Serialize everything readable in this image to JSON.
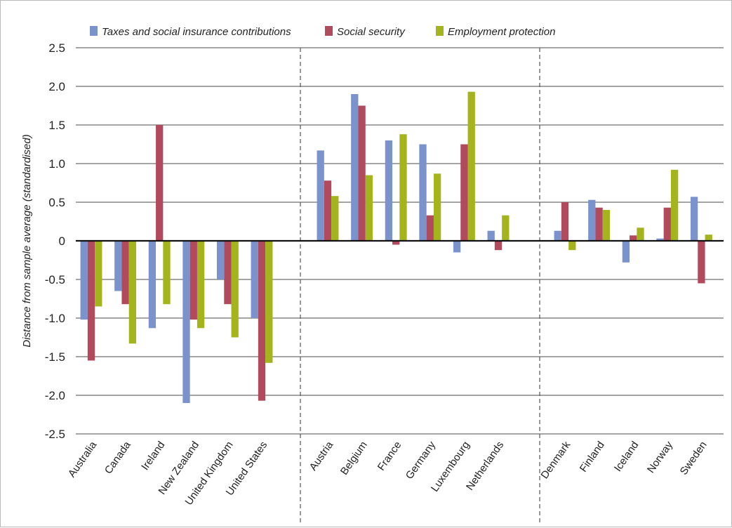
{
  "chart_data": {
    "type": "bar",
    "title": "",
    "xlabel": "",
    "ylabel": "Distance from sample average (standardised)",
    "ylim": [
      -2.5,
      2.5
    ],
    "yticks": [
      "2.5",
      "2.0",
      "1.5",
      "1.0",
      "0.5",
      "0",
      "-0.5",
      "-1.0",
      "-1.5",
      "-2.0",
      "-2.5"
    ],
    "ytick_values": [
      2.5,
      2.0,
      1.5,
      1.0,
      0.5,
      0,
      -0.5,
      -1.0,
      -1.5,
      -2.0,
      -2.5
    ],
    "grid": true,
    "legend_position": "top",
    "categories": [
      "Australia",
      "Canada",
      "Ireland",
      "New Zealand",
      "United Kingdom",
      "United States",
      "Austria",
      "Belgium",
      "France",
      "Germany",
      "Luxembourg",
      "Netherlands",
      "Denmark",
      "Finland",
      "Iceland",
      "Norway",
      "Sweden"
    ],
    "groups": [
      {
        "categories": [
          "Australia",
          "Canada",
          "Ireland",
          "New Zealand",
          "United Kingdom",
          "United States"
        ]
      },
      {
        "categories": [
          "Austria",
          "Belgium",
          "France",
          "Germany",
          "Luxembourg",
          "Netherlands"
        ]
      },
      {
        "categories": [
          "Denmark",
          "Finland",
          "Iceland",
          "Norway",
          "Sweden"
        ]
      }
    ],
    "series": [
      {
        "name": "Taxes and social insurance contributions",
        "color": "#7b93cc",
        "values": [
          -1.02,
          -0.65,
          -1.13,
          -2.1,
          -0.5,
          -1.0,
          1.17,
          1.9,
          1.3,
          1.25,
          -0.15,
          0.13,
          0.13,
          0.53,
          -0.28,
          0.03,
          0.57
        ]
      },
      {
        "name": "Social security",
        "color": "#b24a5e",
        "values": [
          -1.55,
          -0.82,
          1.5,
          -1.02,
          -0.82,
          -2.07,
          0.78,
          1.75,
          -0.05,
          0.33,
          1.25,
          -0.12,
          0.5,
          0.43,
          0.07,
          0.43,
          -0.55
        ]
      },
      {
        "name": "Employment protection",
        "color": "#a3b41c",
        "values": [
          -0.85,
          -1.33,
          -0.82,
          -1.13,
          -1.25,
          -1.58,
          0.58,
          0.85,
          1.38,
          0.87,
          1.93,
          0.33,
          -0.12,
          0.4,
          0.17,
          0.92,
          0.08
        ]
      }
    ]
  }
}
